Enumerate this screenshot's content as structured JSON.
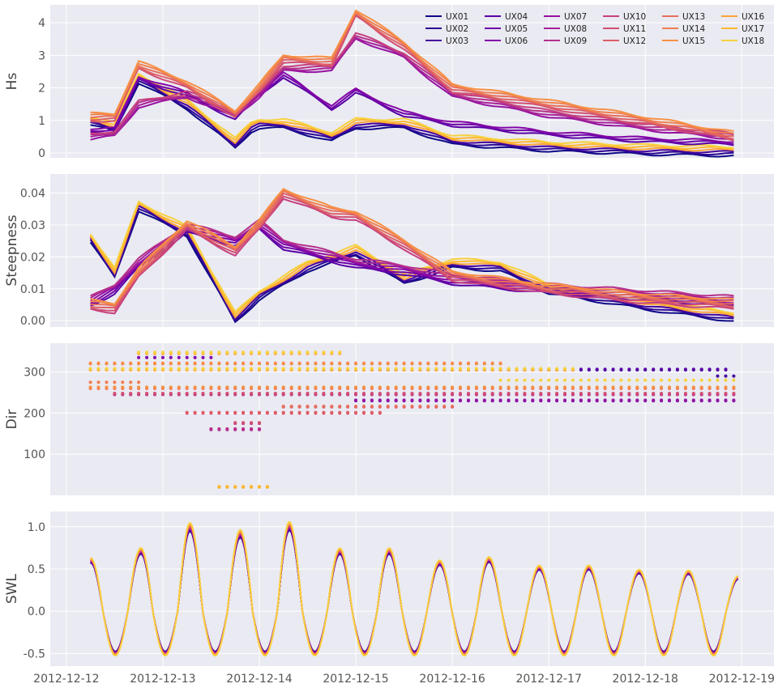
{
  "chart_data": {
    "type": "line",
    "x_start": "2012-12-12T06:00",
    "x_end": "2012-12-18T23:00",
    "xlim": [
      "2012-12-11T20:00",
      "2012-12-19T08:00"
    ],
    "x_ticks": [
      "2012-12-12",
      "2012-12-13",
      "2012-12-14",
      "2012-12-15",
      "2012-12-16",
      "2012-12-17",
      "2012-12-18",
      "2012-12-19"
    ],
    "grid": true,
    "legend": {
      "location": "top-right",
      "columns": 6
    },
    "series_names": [
      "UX01",
      "UX02",
      "UX03",
      "UX04",
      "UX05",
      "UX06",
      "UX07",
      "UX08",
      "UX09",
      "UX10",
      "UX11",
      "UX12",
      "UX13",
      "UX14",
      "UX15",
      "UX16",
      "UX17",
      "UX18"
    ],
    "series_colors": [
      "#0d0887",
      "#2c0594",
      "#43039e",
      "#5901a5",
      "#6e00a8",
      "#8305a7",
      "#9511a1",
      "#a72197",
      "#b6308b",
      "#c5407e",
      "#d14e72",
      "#dd5e66",
      "#e76e5b",
      "#f07f4f",
      "#f79044",
      "#fca338",
      "#feb72d",
      "#f7d13d"
    ],
    "panels": [
      {
        "ylabel": "Hs",
        "ylim": [
          -0.15,
          4.55
        ],
        "yticks": [
          0,
          1,
          2,
          3,
          4
        ],
        "kind": "line",
        "groups": [
          {
            "series": [
              0,
              1,
              2,
              15,
              16,
              17
            ],
            "x": [
              "2012-12-12T06:00",
              "2012-12-12T12:00",
              "2012-12-12T18:00",
              "2012-12-13T06:00",
              "2012-12-13T18:00",
              "2012-12-13T22:00",
              "2012-12-14T00:00",
              "2012-12-14T06:00",
              "2012-12-14T18:00",
              "2012-12-15T00:00",
              "2012-12-15T12:00",
              "2012-12-16T00:00",
              "2012-12-16T12:00",
              "2012-12-17T00:00",
              "2012-12-18T00:00",
              "2012-12-18T23:00"
            ],
            "y": [
              1.0,
              0.8,
              2.3,
              1.5,
              0.3,
              0.8,
              0.9,
              0.9,
              0.5,
              0.9,
              0.9,
              0.4,
              0.3,
              0.2,
              0.1,
              0.05
            ]
          },
          {
            "series": [
              3,
              4,
              5
            ],
            "x": [
              "2012-12-12T06:00",
              "2012-12-12T12:00",
              "2012-12-12T18:00",
              "2012-12-13T06:00",
              "2012-12-13T18:00",
              "2012-12-14T00:00",
              "2012-12-14T06:00",
              "2012-12-14T18:00",
              "2012-12-15T00:00",
              "2012-12-15T12:00",
              "2012-12-16T00:00",
              "2012-12-17T00:00",
              "2012-12-18T00:00",
              "2012-12-18T23:00"
            ],
            "y": [
              0.7,
              0.7,
              2.3,
              1.8,
              1.1,
              1.8,
              2.4,
              1.4,
              1.9,
              1.2,
              0.9,
              0.6,
              0.4,
              0.3
            ]
          },
          {
            "series": [
              6,
              7,
              8,
              9
            ],
            "x": [
              "2012-12-12T06:00",
              "2012-12-12T12:00",
              "2012-12-12T18:00",
              "2012-12-13T06:00",
              "2012-12-13T18:00",
              "2012-12-14T00:00",
              "2012-12-14T06:00",
              "2012-12-14T18:00",
              "2012-12-15T00:00",
              "2012-12-15T12:00",
              "2012-12-16T00:00",
              "2012-12-17T00:00",
              "2012-12-18T00:00",
              "2012-12-18T23:00"
            ],
            "y": [
              0.5,
              0.6,
              1.5,
              1.8,
              1.2,
              1.8,
              2.6,
              2.6,
              3.6,
              3.0,
              1.8,
              1.2,
              0.8,
              0.5
            ]
          },
          {
            "series": [
              10,
              11,
              12,
              13,
              14
            ],
            "x": [
              "2012-12-12T06:00",
              "2012-12-12T12:00",
              "2012-12-12T18:00",
              "2012-12-13T06:00",
              "2012-12-13T18:00",
              "2012-12-14T00:00",
              "2012-12-14T06:00",
              "2012-12-14T18:00",
              "2012-12-15T00:00",
              "2012-12-15T12:00",
              "2012-12-16T00:00",
              "2012-12-17T00:00",
              "2012-12-18T00:00",
              "2012-12-18T23:00"
            ],
            "y": [
              1.1,
              1.1,
              2.7,
              2.1,
              1.2,
              2.0,
              2.9,
              2.8,
              4.3,
              3.3,
              2.0,
              1.5,
              1.0,
              0.5
            ]
          }
        ]
      },
      {
        "ylabel": "Steepness",
        "ylim": [
          -0.002,
          0.046
        ],
        "yticks": [
          0.0,
          0.01,
          0.02,
          0.03,
          0.04
        ],
        "kind": "line",
        "groups": [
          {
            "series": [
              0,
              1,
              2,
              15,
              16,
              17
            ],
            "x": [
              "2012-12-12T06:00",
              "2012-12-12T12:00",
              "2012-12-12T18:00",
              "2012-12-13T06:00",
              "2012-12-13T18:00",
              "2012-12-14T00:00",
              "2012-12-14T12:00",
              "2012-12-15T00:00",
              "2012-12-15T12:00",
              "2012-12-16T00:00",
              "2012-12-16T12:00",
              "2012-12-17T00:00",
              "2012-12-18T00:00",
              "2012-12-18T23:00"
            ],
            "y": [
              0.026,
              0.015,
              0.036,
              0.028,
              0.001,
              0.008,
              0.017,
              0.022,
              0.013,
              0.018,
              0.017,
              0.01,
              0.005,
              0.001
            ]
          },
          {
            "series": [
              3,
              4,
              5,
              6,
              7,
              8
            ],
            "x": [
              "2012-12-12T06:00",
              "2012-12-12T12:00",
              "2012-12-12T18:00",
              "2012-12-13T06:00",
              "2012-12-13T18:00",
              "2012-12-14T00:00",
              "2012-12-14T06:00",
              "2012-12-14T18:00",
              "2012-12-15T00:00",
              "2012-12-15T12:00",
              "2012-12-16T00:00",
              "2012-12-17T00:00",
              "2012-12-18T00:00",
              "2012-12-18T23:00"
            ],
            "y": [
              0.006,
              0.01,
              0.018,
              0.029,
              0.025,
              0.03,
              0.024,
              0.02,
              0.018,
              0.016,
              0.013,
              0.01,
              0.008,
              0.006
            ]
          },
          {
            "series": [
              9,
              10,
              11,
              12,
              13,
              14
            ],
            "x": [
              "2012-12-12T06:00",
              "2012-12-12T12:00",
              "2012-12-12T18:00",
              "2012-12-13T06:00",
              "2012-12-13T18:00",
              "2012-12-14T00:00",
              "2012-12-14T06:00",
              "2012-12-14T18:00",
              "2012-12-15T00:00",
              "2012-12-15T12:00",
              "2012-12-16T00:00",
              "2012-12-17T00:00",
              "2012-12-18T00:00",
              "2012-12-18T23:00"
            ],
            "y": [
              0.005,
              0.004,
              0.015,
              0.03,
              0.022,
              0.03,
              0.04,
              0.034,
              0.033,
              0.024,
              0.014,
              0.01,
              0.007,
              0.005
            ]
          }
        ]
      },
      {
        "ylabel": "Dir",
        "ylim": [
          0,
          370
        ],
        "yticks": [
          100,
          200,
          300
        ],
        "kind": "scatter",
        "groups": [
          {
            "series": [
              15,
              16,
              17
            ],
            "y": 345,
            "start": "2012-12-12T18:00",
            "end": "2012-12-14T20:00"
          },
          {
            "series": [
              5
            ],
            "y": 335,
            "start": "2012-12-12T18:00",
            "end": "2012-12-13T12:00"
          },
          {
            "series": [
              13,
              14
            ],
            "y": 320,
            "start": "2012-12-12T06:00",
            "end": "2012-12-16T12:00"
          },
          {
            "series": [
              2,
              3
            ],
            "y": 305,
            "start": "2012-12-14T12:00",
            "end": "2012-12-18T20:00"
          },
          {
            "series": [
              15,
              16,
              17
            ],
            "y": 305,
            "start": "2012-12-12T06:00",
            "end": "2012-12-17T06:00"
          },
          {
            "series": [
              2
            ],
            "y": 290,
            "start": "2012-12-18T18:00",
            "end": "2012-12-18T23:00"
          },
          {
            "series": [
              17
            ],
            "y": 280,
            "start": "2012-12-16T12:00",
            "end": "2012-12-18T23:00"
          },
          {
            "series": [
              13
            ],
            "y": 275,
            "start": "2012-12-12T06:00",
            "end": "2012-12-12T18:00"
          },
          {
            "series": [
              12,
              13,
              14
            ],
            "y": 260,
            "start": "2012-12-12T06:00",
            "end": "2012-12-18T23:00"
          },
          {
            "series": [
              8,
              9,
              10
            ],
            "y": 245,
            "start": "2012-12-12T12:00",
            "end": "2012-12-18T23:00"
          },
          {
            "series": [
              5,
              6
            ],
            "y": 230,
            "start": "2012-12-15T00:00",
            "end": "2012-12-18T23:00"
          },
          {
            "series": [
              11,
              12
            ],
            "y": 215,
            "start": "2012-12-14T06:00",
            "end": "2012-12-16T00:00"
          },
          {
            "series": [
              10,
              11
            ],
            "y": 200,
            "start": "2012-12-13T06:00",
            "end": "2012-12-15T06:00"
          },
          {
            "series": [
              9,
              10
            ],
            "y": 175,
            "start": "2012-12-13T18:00",
            "end": "2012-12-14T00:00"
          },
          {
            "series": [
              7,
              8
            ],
            "y": 160,
            "start": "2012-12-13T12:00",
            "end": "2012-12-14T00:00"
          },
          {
            "series": [
              15,
              16
            ],
            "y": 20,
            "start": "2012-12-13T14:00",
            "end": "2012-12-14T02:00"
          }
        ]
      },
      {
        "ylabel": "SWL",
        "ylim": [
          -0.65,
          1.18
        ],
        "yticks": [
          -0.5,
          0.0,
          0.5,
          1.0
        ],
        "kind": "tide",
        "tide": {
          "period_hours": 12.4,
          "peak_times": [
            "2012-12-12T06:00",
            "2012-12-12T18:00",
            "2012-12-13T06:00",
            "2012-12-13T18:00",
            "2012-12-14T06:00",
            "2012-12-14T18:00",
            "2012-12-15T06:00",
            "2012-12-15T18:00",
            "2012-12-16T06:00",
            "2012-12-16T18:00",
            "2012-12-17T06:00",
            "2012-12-17T18:00",
            "2012-12-18T06:00",
            "2012-12-18T18:00"
          ],
          "peak_values": [
            0.6,
            0.7,
            1.0,
            0.9,
            1.05,
            0.7,
            0.75,
            0.55,
            0.65,
            0.5,
            0.55,
            0.45,
            0.5,
            0.4
          ],
          "trough_value": -0.5
        },
        "series": [
          0,
          1,
          2,
          3,
          4,
          5,
          6,
          7,
          8,
          9,
          10,
          11,
          12,
          13,
          14,
          15,
          16,
          17
        ]
      }
    ]
  }
}
